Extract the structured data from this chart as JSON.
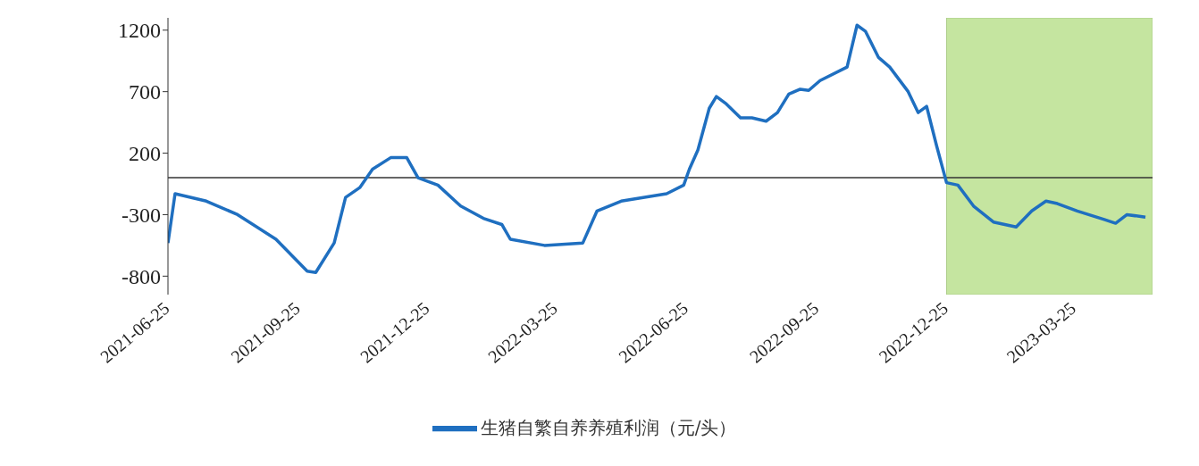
{
  "chart_data": {
    "type": "line",
    "x": [
      "2021-06-25",
      "2021-06-30",
      "2021-07-22",
      "2021-08-13",
      "2021-09-09",
      "2021-10-01",
      "2021-10-07",
      "2021-10-20",
      "2021-10-28",
      "2021-11-07",
      "2021-11-16",
      "2021-11-29",
      "2021-12-10",
      "2021-12-18",
      "2022-01-01",
      "2022-01-17",
      "2022-02-02",
      "2022-02-15",
      "2022-02-21",
      "2022-03-17",
      "2022-04-13",
      "2022-04-23",
      "2022-05-10",
      "2022-06-11",
      "2022-06-23",
      "2022-06-27",
      "2022-07-03",
      "2022-07-11",
      "2022-07-16",
      "2022-07-23",
      "2022-08-02",
      "2022-08-10",
      "2022-08-20",
      "2022-08-28",
      "2022-09-05",
      "2022-09-13",
      "2022-09-19",
      "2022-09-27",
      "2022-10-16",
      "2022-10-23",
      "2022-10-29",
      "2022-11-07",
      "2022-11-15",
      "2022-11-28",
      "2022-12-05",
      "2022-12-11",
      "2022-12-18",
      "2022-12-25",
      "2023-01-02",
      "2023-01-13",
      "2023-01-27",
      "2023-02-12",
      "2023-02-23",
      "2023-03-05",
      "2023-03-13",
      "2023-03-27",
      "2023-04-15",
      "2023-04-23",
      "2023-05-01",
      "2023-05-14"
    ],
    "series": [
      {
        "name": "生猪自繁自养养殖利润（元/头）",
        "color": "#1f6fc0",
        "values": [
          -530,
          -130,
          -190,
          -300,
          -500,
          -760,
          -770,
          -530,
          -160,
          -80,
          70,
          165,
          165,
          0,
          -60,
          -230,
          -330,
          -380,
          -500,
          -550,
          -530,
          -270,
          -190,
          -130,
          -60,
          70,
          226,
          565,
          660,
          600,
          487,
          487,
          460,
          530,
          680,
          720,
          710,
          790,
          900,
          1240,
          1190,
          980,
          900,
          700,
          530,
          580,
          260,
          -40,
          -60,
          -230,
          -360,
          -400,
          -270,
          -190,
          -210,
          -270,
          -340,
          -370,
          -300,
          -320
        ]
      }
    ],
    "xlim": [
      "2021-06-25",
      "2023-05-19"
    ],
    "xticks": [
      "2021-06-25",
      "2021-09-25",
      "2021-12-25",
      "2022-03-25",
      "2022-06-25",
      "2022-09-25",
      "2022-12-25",
      "2023-03-25"
    ],
    "ylim": [
      -950,
      1300
    ],
    "yticks": [
      -800,
      -300,
      200,
      700,
      1200
    ],
    "grid": false,
    "legend": "bottom",
    "marker": "none",
    "line_style": "solid",
    "ref_lines": [
      {
        "axis": "y",
        "value": 0,
        "color": "#333333"
      }
    ],
    "bands": [
      {
        "axis": "x",
        "from": "2022-12-25",
        "to": "2023-05-19",
        "color": "#c5e5a0"
      }
    ]
  }
}
